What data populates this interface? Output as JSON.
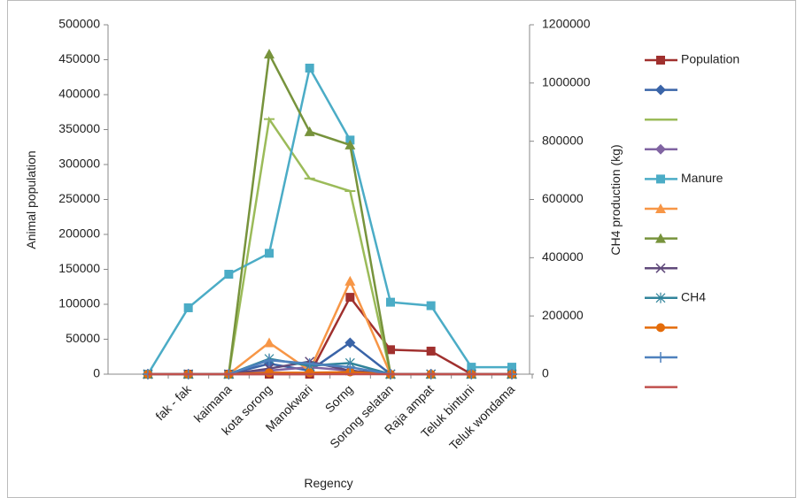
{
  "chart_data": {
    "type": "line",
    "x_label": "Regency",
    "y_label": "Animal population",
    "y2_label": "CH4 production (kg)",
    "categories": [
      null,
      "fak - fak",
      "kaimana",
      "kota sorong",
      "Manokwari",
      "Sorng",
      "Sorong selatan",
      "Raja ampat",
      "Teluk bintuni",
      "Teluk wondama"
    ],
    "ylim": [
      0,
      500000
    ],
    "yticks": [
      0,
      50000,
      100000,
      150000,
      200000,
      250000,
      300000,
      350000,
      400000,
      450000,
      500000
    ],
    "y2lim": [
      0,
      1200000
    ],
    "y2ticks": [
      0,
      200000,
      400000,
      600000,
      800000,
      1000000,
      1200000
    ],
    "grid": false,
    "legend": "right",
    "series": [
      {
        "name": "Population",
        "color": "#a0302e",
        "marker": "square",
        "values": [
          0,
          0,
          0,
          0,
          0,
          110000,
          35000,
          33000,
          0,
          0
        ]
      },
      {
        "color": "#3a64a8",
        "marker": "diamond",
        "values": [
          0,
          0,
          0,
          15000,
          5000,
          45000,
          0,
          0,
          0,
          0
        ]
      },
      {
        "color": "#9bbb59",
        "marker": "dash",
        "values": [
          0,
          0,
          0,
          365000,
          280000,
          262000,
          0,
          0,
          0,
          0
        ]
      },
      {
        "color": "#8064a2",
        "marker": "diamond",
        "values": [
          0,
          0,
          0,
          5000,
          10000,
          5000,
          0,
          0,
          0,
          0
        ]
      },
      {
        "name": "Manure",
        "color": "#4bacc6",
        "marker": "square",
        "values": [
          0,
          95000,
          143000,
          173000,
          438000,
          335000,
          103000,
          98000,
          10000,
          10000
        ]
      },
      {
        "color": "#f79646",
        "marker": "triangle",
        "values": [
          0,
          0,
          0,
          45000,
          5000,
          133000,
          0,
          0,
          0,
          0
        ]
      },
      {
        "color": "#77933c",
        "marker": "triangle",
        "values": [
          0,
          0,
          0,
          458000,
          347000,
          328000,
          0,
          0,
          0,
          0
        ]
      },
      {
        "color": "#604a7b",
        "marker": "x",
        "values": [
          0,
          0,
          0,
          8000,
          18000,
          5000,
          0,
          0,
          0,
          0
        ]
      },
      {
        "name": "CH4",
        "color": "#31849b",
        "marker": "asterisk",
        "values": [
          0,
          0,
          0,
          22000,
          12000,
          16000,
          0,
          0,
          0,
          0
        ]
      },
      {
        "color": "#e46c0a",
        "marker": "circle",
        "values": [
          0,
          0,
          0,
          2000,
          2000,
          3000,
          0,
          0,
          0,
          0
        ]
      },
      {
        "color": "#4f81bd",
        "marker": "plus",
        "values": [
          0,
          0,
          0,
          20000,
          15000,
          10000,
          0,
          0,
          0,
          0
        ]
      },
      {
        "color": "#c0504d",
        "marker": "none",
        "values": [
          0,
          0,
          0,
          0,
          0,
          0,
          0,
          0,
          0,
          0
        ]
      }
    ]
  }
}
